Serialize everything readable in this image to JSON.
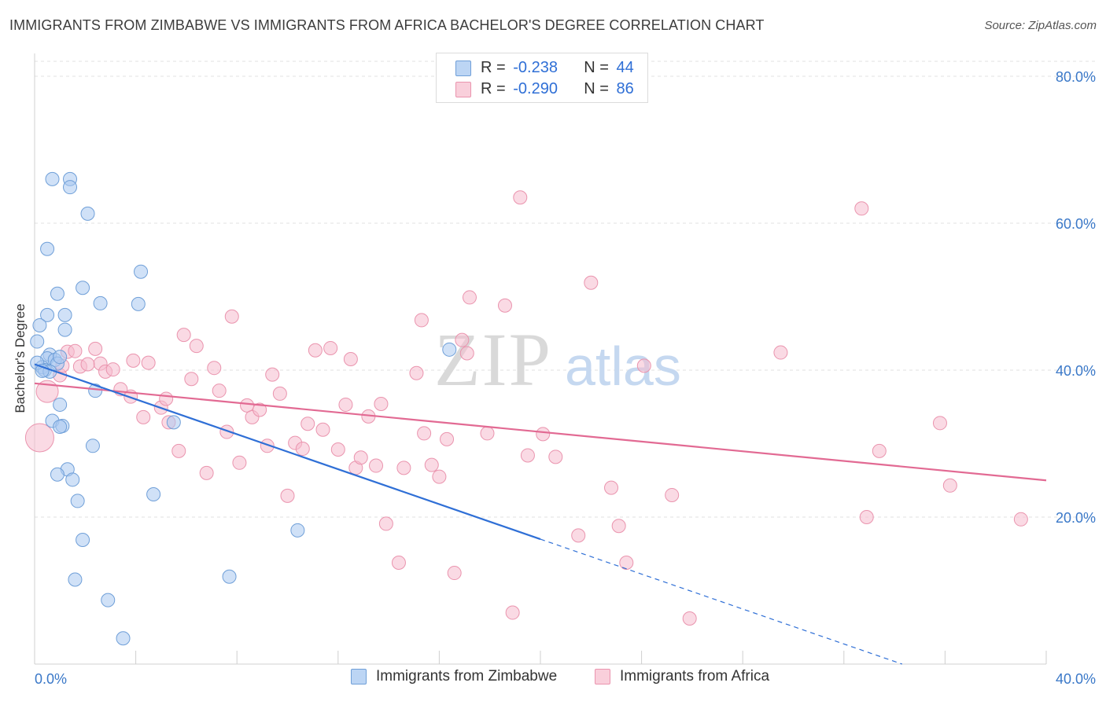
{
  "title": "IMMIGRANTS FROM ZIMBABWE VS IMMIGRANTS FROM AFRICA BACHELOR'S DEGREE CORRELATION CHART",
  "source": "Source: ZipAtlas.com",
  "watermark": {
    "zip": "ZIP",
    "atlas": "atlas"
  },
  "legend": {
    "zimbabwe": "Immigrants from Zimbabwe",
    "africa": "Immigrants from Africa"
  },
  "stats": {
    "zimbabwe": {
      "r_label": "R =",
      "r": "-0.238",
      "n_label": "N =",
      "n": "44"
    },
    "africa": {
      "r_label": "R =",
      "r": "-0.290",
      "n_label": "N =",
      "n": "86"
    }
  },
  "colors": {
    "zimbabwe_fill": "#a9c8f0",
    "zimbabwe_stroke": "#6f9fd8",
    "zimbabwe_line": "#2f6fd6",
    "africa_fill": "#f6bccd",
    "africa_stroke": "#ea94ae",
    "africa_line": "#e26a93",
    "tick_label": "#3a78c8"
  },
  "chart_data": {
    "type": "scatter",
    "xlabel": "",
    "ylabel": "Bachelor's Degree",
    "xlim": [
      0,
      40
    ],
    "ylim": [
      0,
      80
    ],
    "x_tick_labels": [
      "0.0%",
      "40.0%"
    ],
    "y_ticks": [
      20,
      40,
      60,
      80
    ],
    "y_tick_labels": [
      "20.0%",
      "40.0%",
      "60.0%",
      "80.0%"
    ],
    "grid": true,
    "series": [
      {
        "name": "Immigrants from Zimbabwe",
        "trend": {
          "x": [
            0.0,
            20.0
          ],
          "y": [
            40.8,
            17.0
          ],
          "dashed_to": [
            34.3,
            0.0
          ]
        },
        "points": [
          [
            0.7,
            66.0
          ],
          [
            1.4,
            66.0
          ],
          [
            1.4,
            64.9
          ],
          [
            2.1,
            61.3
          ],
          [
            0.5,
            56.5
          ],
          [
            4.2,
            53.4
          ],
          [
            1.9,
            51.2
          ],
          [
            0.9,
            50.4
          ],
          [
            2.6,
            49.1
          ],
          [
            4.1,
            49.0
          ],
          [
            0.5,
            47.5
          ],
          [
            1.2,
            47.5
          ],
          [
            0.2,
            46.1
          ],
          [
            1.2,
            45.5
          ],
          [
            0.1,
            43.9
          ],
          [
            16.4,
            42.8
          ],
          [
            0.6,
            42.1
          ],
          [
            0.5,
            41.6
          ],
          [
            0.8,
            41.4
          ],
          [
            0.9,
            40.9
          ],
          [
            0.3,
            40.4
          ],
          [
            0.4,
            40.0
          ],
          [
            0.6,
            39.8
          ],
          [
            2.4,
            37.2
          ],
          [
            1.0,
            35.3
          ],
          [
            0.7,
            33.1
          ],
          [
            1.1,
            32.4
          ],
          [
            1.0,
            32.3
          ],
          [
            5.5,
            32.9
          ],
          [
            2.3,
            29.7
          ],
          [
            1.3,
            26.5
          ],
          [
            0.9,
            25.8
          ],
          [
            1.5,
            25.1
          ],
          [
            1.7,
            22.2
          ],
          [
            4.7,
            23.1
          ],
          [
            1.9,
            16.9
          ],
          [
            10.4,
            18.2
          ],
          [
            1.6,
            11.5
          ],
          [
            7.7,
            11.9
          ],
          [
            2.9,
            8.7
          ],
          [
            3.5,
            3.5
          ],
          [
            0.1,
            41.0
          ],
          [
            1.0,
            41.8
          ],
          [
            0.3,
            39.9
          ]
        ]
      },
      {
        "name": "Immigrants from Africa",
        "trend": {
          "x": [
            0.0,
            40.0
          ],
          "y": [
            38.2,
            25.0
          ]
        },
        "points": [
          [
            0.2,
            30.8
          ],
          [
            0.5,
            37.1
          ],
          [
            1.0,
            39.3
          ],
          [
            1.3,
            42.5
          ],
          [
            1.6,
            42.6
          ],
          [
            1.8,
            40.5
          ],
          [
            2.4,
            42.9
          ],
          [
            2.6,
            40.9
          ],
          [
            2.8,
            39.8
          ],
          [
            3.1,
            40.1
          ],
          [
            3.4,
            37.4
          ],
          [
            3.8,
            36.4
          ],
          [
            3.9,
            41.3
          ],
          [
            4.3,
            33.6
          ],
          [
            4.5,
            41.0
          ],
          [
            5.0,
            34.9
          ],
          [
            5.2,
            36.1
          ],
          [
            5.3,
            32.9
          ],
          [
            5.7,
            29.0
          ],
          [
            5.9,
            44.8
          ],
          [
            6.2,
            38.8
          ],
          [
            6.4,
            43.3
          ],
          [
            6.8,
            26.0
          ],
          [
            7.1,
            40.3
          ],
          [
            7.3,
            37.2
          ],
          [
            7.6,
            31.6
          ],
          [
            7.8,
            47.3
          ],
          [
            8.1,
            27.4
          ],
          [
            8.4,
            35.2
          ],
          [
            8.6,
            33.6
          ],
          [
            8.9,
            34.6
          ],
          [
            9.2,
            29.7
          ],
          [
            9.4,
            39.4
          ],
          [
            9.7,
            36.8
          ],
          [
            10.0,
            22.9
          ],
          [
            10.3,
            30.1
          ],
          [
            10.6,
            29.3
          ],
          [
            10.8,
            32.7
          ],
          [
            11.1,
            42.7
          ],
          [
            11.4,
            31.9
          ],
          [
            11.7,
            43.0
          ],
          [
            12.0,
            29.2
          ],
          [
            12.3,
            35.3
          ],
          [
            12.5,
            41.5
          ],
          [
            12.7,
            26.7
          ],
          [
            12.9,
            28.1
          ],
          [
            13.2,
            33.7
          ],
          [
            13.5,
            27.0
          ],
          [
            13.7,
            35.4
          ],
          [
            13.9,
            19.1
          ],
          [
            14.4,
            13.8
          ],
          [
            14.6,
            26.7
          ],
          [
            15.1,
            39.6
          ],
          [
            15.3,
            46.8
          ],
          [
            15.4,
            31.4
          ],
          [
            15.7,
            27.1
          ],
          [
            16.0,
            25.5
          ],
          [
            16.3,
            30.6
          ],
          [
            16.6,
            12.4
          ],
          [
            16.9,
            44.1
          ],
          [
            17.1,
            42.3
          ],
          [
            17.2,
            49.9
          ],
          [
            17.9,
            31.4
          ],
          [
            18.6,
            48.8
          ],
          [
            18.9,
            7.0
          ],
          [
            19.2,
            63.5
          ],
          [
            19.5,
            28.4
          ],
          [
            20.1,
            31.3
          ],
          [
            20.6,
            28.2
          ],
          [
            21.5,
            17.5
          ],
          [
            22.0,
            51.9
          ],
          [
            22.8,
            24.0
          ],
          [
            23.1,
            18.8
          ],
          [
            23.4,
            13.8
          ],
          [
            24.1,
            40.6
          ],
          [
            25.2,
            23.0
          ],
          [
            25.9,
            6.2
          ],
          [
            29.5,
            42.4
          ],
          [
            32.7,
            62.0
          ],
          [
            32.9,
            20.0
          ],
          [
            33.4,
            29.0
          ],
          [
            35.8,
            32.8
          ],
          [
            36.2,
            24.3
          ],
          [
            39.0,
            19.7
          ],
          [
            1.1,
            40.6
          ],
          [
            2.1,
            40.8
          ]
        ]
      }
    ]
  }
}
